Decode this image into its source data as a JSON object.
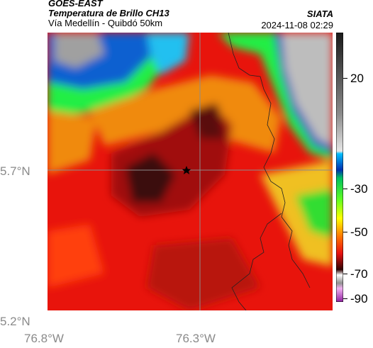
{
  "header": {
    "source": "GOES-EAST",
    "product": "Temperatura de Brillo CH13",
    "region": "Vía Medellín - Quibdó 50km",
    "agency": "SIATA",
    "datetime": "2024-11-08 02:29"
  },
  "map": {
    "lat_labels": [
      "5.7°N",
      "5.2°N"
    ],
    "lon_labels": [
      "76.8°W",
      "76.3°W"
    ],
    "marker": "star-marker"
  },
  "colorbar": {
    "ticks": [
      "20",
      "-30",
      "-50",
      "-70",
      "-90"
    ],
    "colors": [
      "#f2f2f2",
      "#c8c8c8",
      "#9a9a9a",
      "#606060",
      "#202020",
      "#00c8ff",
      "#0050c0",
      "#00ff50",
      "#ffff00",
      "#ff9000",
      "#ff2000",
      "#900000",
      "#300000",
      "#ffffff",
      "#c040c0"
    ]
  }
}
